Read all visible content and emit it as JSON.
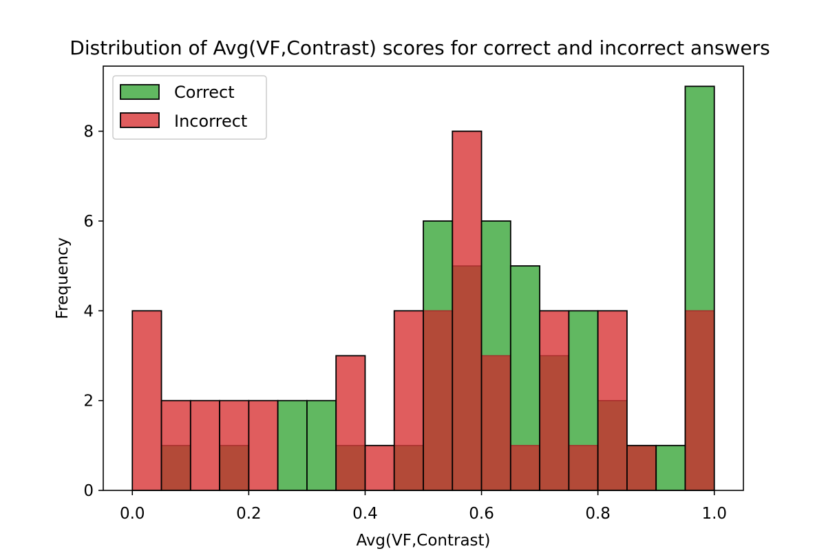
{
  "chart_data": {
    "type": "bar",
    "subtype": "overlaid-histogram",
    "title": "Distribution of Avg(VF,Contrast) scores for correct and incorrect answers",
    "xlabel": "Avg(VF,Contrast)",
    "ylabel": "Frequency",
    "xlim": [
      -0.05,
      1.05
    ],
    "ylim": [
      0,
      9.45
    ],
    "x_ticks": [
      0.0,
      0.2,
      0.4,
      0.6,
      0.8,
      1.0
    ],
    "y_ticks": [
      0,
      2,
      4,
      6,
      8
    ],
    "bin_edges": [
      0.0,
      0.05,
      0.1,
      0.15,
      0.2,
      0.25,
      0.3,
      0.35,
      0.4,
      0.45,
      0.5,
      0.55,
      0.6,
      0.65,
      0.7,
      0.75,
      0.8,
      0.85,
      0.9,
      0.95,
      1.0
    ],
    "grid": false,
    "legend_position": "top-left",
    "series": [
      {
        "name": "Correct",
        "color": "#2ca02c",
        "values": [
          0,
          1,
          0,
          1,
          0,
          2,
          2,
          1,
          0,
          1,
          6,
          5,
          6,
          5,
          3,
          4,
          2,
          1,
          1,
          9
        ]
      },
      {
        "name": "Incorrect",
        "color": "#d62728",
        "values": [
          4,
          2,
          2,
          2,
          2,
          0,
          0,
          3,
          1,
          4,
          4,
          8,
          3,
          1,
          4,
          1,
          4,
          1,
          0,
          4
        ]
      }
    ],
    "overlap_color": "#b34a38"
  }
}
